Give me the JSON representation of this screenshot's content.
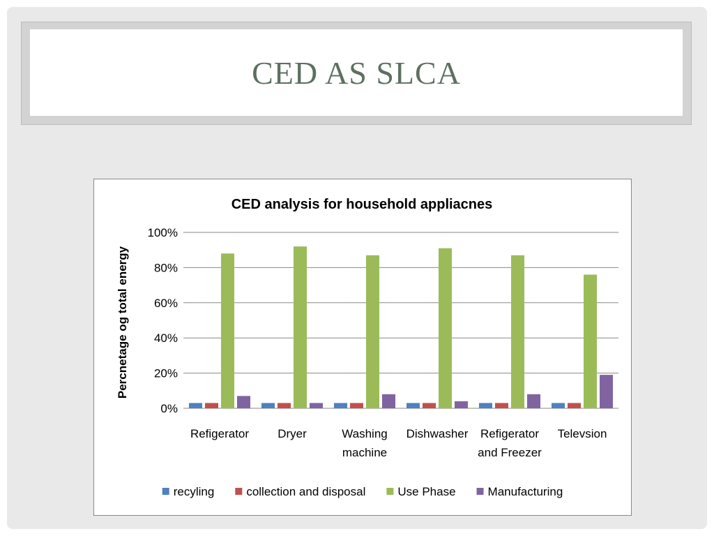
{
  "slide": {
    "title": "CED AS SLCA"
  },
  "chart_data": {
    "type": "bar",
    "title": "CED analysis for household appliacnes",
    "ylabel": "Percnetage og total energy",
    "xlabel": "",
    "ylim": [
      0,
      100
    ],
    "yticks": [
      "0%",
      "20%",
      "40%",
      "60%",
      "80%",
      "100%"
    ],
    "grid": true,
    "legend": "bottom",
    "categories": [
      [
        "Refigerator"
      ],
      [
        "Dryer"
      ],
      [
        "Washing",
        "machine"
      ],
      [
        "Dishwasher"
      ],
      [
        "Refigerator",
        "and Freezer"
      ],
      [
        "Televsion"
      ]
    ],
    "series": [
      {
        "name": "recyling",
        "color": "#4f81bd",
        "values": [
          3,
          3,
          3,
          3,
          3,
          3
        ]
      },
      {
        "name": "collection and disposal",
        "color": "#c0504d",
        "values": [
          3,
          3,
          3,
          3,
          3,
          3
        ]
      },
      {
        "name": "Use Phase",
        "color": "#9bbb59",
        "values": [
          88,
          92,
          87,
          91,
          87,
          76
        ]
      },
      {
        "name": "Manufacturing",
        "color": "#8064a2",
        "values": [
          7,
          3,
          8,
          4,
          8,
          19
        ]
      }
    ]
  }
}
